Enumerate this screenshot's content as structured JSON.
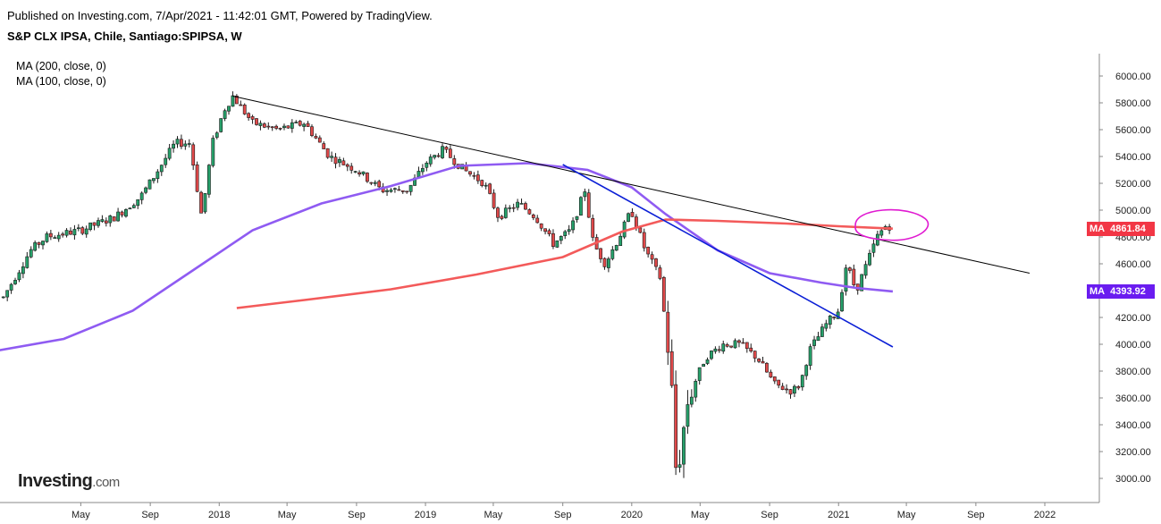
{
  "header": {
    "published": "Published on Investing.com, 7/Apr/2021 - 11:42:01 GMT, Powered by TradingView.",
    "symbol": "S&P CLX IPSA, Chile, Santiago:SPIPSA, W"
  },
  "legend": {
    "ma200": "MA (200, close, 0)",
    "ma100": "MA (100, close, 0)"
  },
  "logo": {
    "brand": "Investing",
    "suffix": ".com"
  },
  "badges": {
    "ma200": {
      "tag": "MA",
      "value": "4861.84",
      "color": "#f23645"
    },
    "ma100": {
      "tag": "MA",
      "value": "4393.92",
      "color": "#6a1cf0"
    }
  },
  "chart_data": {
    "type": "candlestick",
    "y_ticks": [
      "6000.00",
      "5800.00",
      "5600.00",
      "5400.00",
      "5200.00",
      "5000.00",
      "4800.00",
      "4600.00",
      "4400.00",
      "4200.00",
      "4000.00",
      "3800.00",
      "3600.00",
      "3400.00",
      "3200.00",
      "3000.00"
    ],
    "x_ticks": [
      "May",
      "Sep",
      "2018",
      "May",
      "Sep",
      "2019",
      "May",
      "Sep",
      "2020",
      "May",
      "Sep",
      "2021",
      "May",
      "Sep",
      "2022"
    ],
    "ylim": [
      2850,
      6120
    ],
    "price_path": [
      [
        "2016-12-15",
        4350
      ],
      [
        "2017-02-01",
        4700
      ],
      [
        "2017-03-01",
        4800
      ],
      [
        "2017-05-01",
        4850
      ],
      [
        "2017-07-01",
        4950
      ],
      [
        "2017-08-15",
        5100
      ],
      [
        "2017-09-15",
        5300
      ],
      [
        "2017-10-15",
        5500
      ],
      [
        "2017-11-10",
        5500
      ],
      [
        "2017-12-01",
        4950
      ],
      [
        "2017-12-20",
        5500
      ],
      [
        "2018-01-10",
        5750
      ],
      [
        "2018-01-25",
        5850
      ],
      [
        "2018-03-01",
        5650
      ],
      [
        "2018-04-15",
        5600
      ],
      [
        "2018-06-01",
        5650
      ],
      [
        "2018-07-15",
        5400
      ],
      [
        "2018-09-01",
        5300
      ],
      [
        "2018-10-15",
        5150
      ],
      [
        "2018-12-01",
        5150
      ],
      [
        "2019-01-01",
        5350
      ],
      [
        "2019-02-01",
        5450
      ],
      [
        "2019-03-10",
        5300
      ],
      [
        "2019-04-15",
        5200
      ],
      [
        "2019-05-10",
        4950
      ],
      [
        "2019-06-15",
        5050
      ],
      [
        "2019-07-15",
        4950
      ],
      [
        "2019-08-15",
        4750
      ],
      [
        "2019-09-15",
        4850
      ],
      [
        "2019-10-10",
        5150
      ],
      [
        "2019-10-25",
        4750
      ],
      [
        "2019-11-15",
        4600
      ],
      [
        "2019-12-10",
        4800
      ],
      [
        "2019-12-31",
        5000
      ],
      [
        "2020-01-25",
        4700
      ],
      [
        "2020-02-20",
        4500
      ],
      [
        "2020-03-10",
        3800
      ],
      [
        "2020-03-20",
        3000
      ],
      [
        "2020-04-10",
        3600
      ],
      [
        "2020-05-10",
        3900
      ],
      [
        "2020-06-10",
        4000
      ],
      [
        "2020-07-10",
        4000
      ],
      [
        "2020-08-10",
        3900
      ],
      [
        "2020-09-10",
        3700
      ],
      [
        "2020-10-10",
        3650
      ],
      [
        "2020-10-25",
        3700
      ],
      [
        "2020-11-10",
        3950
      ],
      [
        "2020-12-10",
        4150
      ],
      [
        "2020-12-31",
        4250
      ],
      [
        "2021-01-15",
        4600
      ],
      [
        "2021-02-01",
        4400
      ],
      [
        "2021-02-20",
        4600
      ],
      [
        "2021-03-10",
        4800
      ],
      [
        "2021-03-25",
        4880
      ],
      [
        "2021-04-07",
        4880
      ]
    ],
    "ma200": [
      [
        "2018-02-01",
        4270
      ],
      [
        "2018-06-01",
        4330
      ],
      [
        "2018-11-01",
        4410
      ],
      [
        "2019-04-01",
        4520
      ],
      [
        "2019-09-01",
        4650
      ],
      [
        "2019-12-15",
        4840
      ],
      [
        "2020-03-01",
        4930
      ],
      [
        "2020-06-01",
        4920
      ],
      [
        "2020-10-01",
        4900
      ],
      [
        "2021-01-01",
        4880
      ],
      [
        "2021-04-07",
        4862
      ]
    ],
    "ma100": [
      [
        "2016-12-01",
        3950
      ],
      [
        "2017-04-01",
        4040
      ],
      [
        "2017-08-01",
        4250
      ],
      [
        "2017-11-15",
        4550
      ],
      [
        "2018-03-01",
        4850
      ],
      [
        "2018-07-01",
        5050
      ],
      [
        "2018-11-01",
        5180
      ],
      [
        "2019-03-01",
        5330
      ],
      [
        "2019-07-01",
        5350
      ],
      [
        "2019-10-15",
        5300
      ],
      [
        "2020-01-01",
        5170
      ],
      [
        "2020-03-01",
        4970
      ],
      [
        "2020-06-01",
        4700
      ],
      [
        "2020-09-01",
        4530
      ],
      [
        "2020-12-01",
        4460
      ],
      [
        "2021-02-01",
        4420
      ],
      [
        "2021-04-07",
        4394
      ]
    ],
    "trendlines": [
      {
        "color": "#000000",
        "from": [
          "2018-01-25",
          5850
        ],
        "to": [
          "2021-12-05",
          4530
        ]
      },
      {
        "color": "#0b1fd6",
        "from": [
          "2019-09-01",
          5340
        ],
        "to": [
          "2021-04-07",
          3980
        ]
      }
    ],
    "annotation_ellipse": {
      "center": [
        "2021-04-01",
        4870
      ],
      "color": "#e01ad1"
    }
  }
}
